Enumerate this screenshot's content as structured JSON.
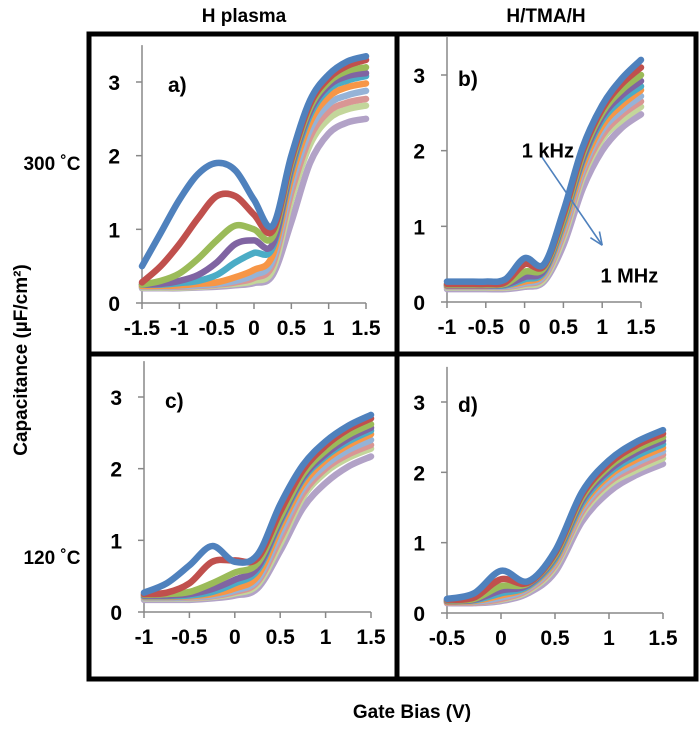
{
  "figure": {
    "column_titles": [
      "H plasma",
      "H/TMA/H"
    ],
    "row_titles": [
      "300 ˚C",
      "120 ˚C"
    ],
    "ylabel": "Capacitance (µF/cm²)",
    "xlabel": "Gate Bias (V)",
    "series_colors": [
      "#4F81BD",
      "#C0504D",
      "#9BBB59",
      "#8064A2",
      "#4BACC6",
      "#F79646",
      "#95B3D7",
      "#D99694",
      "#C3D69B",
      "#B2A2C7"
    ]
  },
  "chart_data": [
    {
      "type": "line",
      "panel_label": "a)",
      "xlim": [
        -1.5,
        1.5
      ],
      "ylim": [
        0,
        3.5
      ],
      "xticks": [
        "-1.5",
        "-1",
        "-0.5",
        "0",
        "0.5",
        "1",
        "1.5"
      ],
      "xtick_values": [
        -1.5,
        -1,
        -0.5,
        0,
        0.5,
        1,
        1.5
      ],
      "yticks": [
        "0",
        "1",
        "2",
        "3"
      ],
      "ytick_values": [
        0,
        1,
        2,
        3
      ],
      "grid": false,
      "x": [
        -1.5,
        -1.25,
        -1,
        -0.75,
        -0.5,
        -0.25,
        0,
        0.25,
        0.5,
        0.75,
        1,
        1.25,
        1.5
      ],
      "series": [
        {
          "values": [
            0.5,
            0.95,
            1.4,
            1.75,
            1.9,
            1.8,
            1.4,
            1.05,
            2.0,
            2.75,
            3.1,
            3.28,
            3.35
          ]
        },
        {
          "values": [
            0.28,
            0.5,
            0.8,
            1.15,
            1.45,
            1.45,
            1.2,
            0.98,
            1.95,
            2.7,
            3.05,
            3.22,
            3.3
          ]
        },
        {
          "values": [
            0.25,
            0.3,
            0.4,
            0.6,
            0.85,
            1.05,
            1.0,
            0.9,
            1.9,
            2.65,
            3.0,
            3.15,
            3.2
          ]
        },
        {
          "values": [
            0.25,
            0.26,
            0.3,
            0.38,
            0.55,
            0.8,
            0.85,
            0.8,
            1.85,
            2.6,
            2.95,
            3.08,
            3.12
          ]
        },
        {
          "values": [
            0.25,
            0.25,
            0.27,
            0.3,
            0.38,
            0.55,
            0.68,
            0.75,
            1.8,
            2.55,
            2.9,
            3.02,
            3.08
          ]
        },
        {
          "values": [
            0.23,
            0.23,
            0.24,
            0.26,
            0.28,
            0.35,
            0.45,
            0.65,
            1.7,
            2.45,
            2.8,
            2.93,
            2.98
          ]
        },
        {
          "values": [
            0.22,
            0.22,
            0.23,
            0.24,
            0.26,
            0.3,
            0.38,
            0.58,
            1.6,
            2.35,
            2.7,
            2.82,
            2.88
          ]
        },
        {
          "values": [
            0.22,
            0.22,
            0.22,
            0.23,
            0.25,
            0.28,
            0.34,
            0.52,
            1.5,
            2.25,
            2.6,
            2.72,
            2.77
          ]
        },
        {
          "values": [
            0.21,
            0.21,
            0.21,
            0.22,
            0.24,
            0.26,
            0.3,
            0.45,
            1.4,
            2.15,
            2.5,
            2.63,
            2.68
          ]
        },
        {
          "values": [
            0.2,
            0.2,
            0.2,
            0.21,
            0.22,
            0.24,
            0.27,
            0.38,
            1.1,
            1.9,
            2.3,
            2.45,
            2.5
          ]
        }
      ]
    },
    {
      "type": "line",
      "panel_label": "b)",
      "xlim": [
        -1,
        1.5
      ],
      "ylim": [
        0,
        3.5
      ],
      "xticks": [
        "-1",
        "-0.5",
        "0",
        "0.5",
        "1",
        "1.5"
      ],
      "xtick_values": [
        -1,
        -0.5,
        0,
        0.5,
        1,
        1.5
      ],
      "yticks": [
        "0",
        "1",
        "2",
        "3"
      ],
      "ytick_values": [
        0,
        1,
        2,
        3
      ],
      "grid": false,
      "x": [
        -1,
        -0.75,
        -0.5,
        -0.25,
        0,
        0.25,
        0.5,
        0.75,
        1,
        1.25,
        1.5
      ],
      "series": [
        {
          "values": [
            0.27,
            0.27,
            0.27,
            0.3,
            0.58,
            0.5,
            1.2,
            2.05,
            2.6,
            2.95,
            3.2
          ]
        },
        {
          "values": [
            0.24,
            0.24,
            0.24,
            0.26,
            0.5,
            0.48,
            1.15,
            2.0,
            2.55,
            2.88,
            3.1
          ]
        },
        {
          "values": [
            0.23,
            0.23,
            0.23,
            0.24,
            0.4,
            0.45,
            1.1,
            1.95,
            2.5,
            2.8,
            3.0
          ]
        },
        {
          "values": [
            0.22,
            0.22,
            0.22,
            0.23,
            0.33,
            0.42,
            1.08,
            1.9,
            2.45,
            2.73,
            2.92
          ]
        },
        {
          "values": [
            0.22,
            0.22,
            0.22,
            0.22,
            0.3,
            0.4,
            1.05,
            1.87,
            2.4,
            2.67,
            2.85
          ]
        },
        {
          "values": [
            0.21,
            0.21,
            0.21,
            0.22,
            0.27,
            0.38,
            1.0,
            1.8,
            2.33,
            2.6,
            2.8
          ]
        },
        {
          "values": [
            0.2,
            0.2,
            0.2,
            0.21,
            0.25,
            0.35,
            0.95,
            1.75,
            2.27,
            2.53,
            2.72
          ]
        },
        {
          "values": [
            0.2,
            0.2,
            0.2,
            0.2,
            0.24,
            0.33,
            0.9,
            1.7,
            2.2,
            2.47,
            2.65
          ]
        },
        {
          "values": [
            0.19,
            0.19,
            0.19,
            0.19,
            0.22,
            0.3,
            0.85,
            1.65,
            2.15,
            2.4,
            2.58
          ]
        },
        {
          "values": [
            0.17,
            0.17,
            0.17,
            0.17,
            0.2,
            0.27,
            0.75,
            1.5,
            2.0,
            2.3,
            2.48
          ]
        }
      ],
      "annotations": [
        {
          "text": "1 kHz",
          "x": 0.3,
          "y": 2.0
        },
        {
          "text": "1 MHz",
          "x": 1.35,
          "y": 0.35
        }
      ],
      "arrow": {
        "from": [
          0.2,
          1.95
        ],
        "to": [
          1.0,
          0.75
        ],
        "color": "#4F81BD"
      }
    },
    {
      "type": "line",
      "panel_label": "c)",
      "xlim": [
        -1,
        1.5
      ],
      "ylim": [
        0,
        3.5
      ],
      "xticks": [
        "-1",
        "-0.5",
        "0",
        "0.5",
        "1",
        "1.5"
      ],
      "xtick_values": [
        -1,
        -0.5,
        0,
        0.5,
        1,
        1.5
      ],
      "yticks": [
        "0",
        "1",
        "2",
        "3"
      ],
      "ytick_values": [
        0,
        1,
        2,
        3
      ],
      "grid": false,
      "x": [
        -1,
        -0.75,
        -0.5,
        -0.25,
        0,
        0.25,
        0.5,
        0.75,
        1,
        1.25,
        1.5
      ],
      "series": [
        {
          "values": [
            0.27,
            0.4,
            0.65,
            0.92,
            0.7,
            0.8,
            1.5,
            2.05,
            2.38,
            2.6,
            2.75
          ]
        },
        {
          "values": [
            0.25,
            0.27,
            0.4,
            0.7,
            0.72,
            0.75,
            1.4,
            1.98,
            2.32,
            2.55,
            2.7
          ]
        },
        {
          "values": [
            0.24,
            0.25,
            0.28,
            0.4,
            0.55,
            0.68,
            1.32,
            1.92,
            2.25,
            2.47,
            2.62
          ]
        },
        {
          "values": [
            0.23,
            0.23,
            0.25,
            0.32,
            0.45,
            0.62,
            1.28,
            1.88,
            2.2,
            2.42,
            2.57
          ]
        },
        {
          "values": [
            0.22,
            0.22,
            0.23,
            0.28,
            0.4,
            0.58,
            1.25,
            1.85,
            2.17,
            2.38,
            2.53
          ]
        },
        {
          "values": [
            0.21,
            0.21,
            0.22,
            0.25,
            0.33,
            0.5,
            1.18,
            1.78,
            2.12,
            2.33,
            2.48
          ]
        },
        {
          "values": [
            0.2,
            0.2,
            0.21,
            0.23,
            0.3,
            0.45,
            1.1,
            1.72,
            2.05,
            2.26,
            2.4
          ]
        },
        {
          "values": [
            0.2,
            0.2,
            0.2,
            0.22,
            0.28,
            0.42,
            1.02,
            1.65,
            2.0,
            2.2,
            2.33
          ]
        },
        {
          "values": [
            0.19,
            0.19,
            0.19,
            0.21,
            0.26,
            0.38,
            0.95,
            1.6,
            1.95,
            2.15,
            2.28
          ]
        },
        {
          "values": [
            0.17,
            0.17,
            0.17,
            0.19,
            0.23,
            0.33,
            0.85,
            1.45,
            1.8,
            2.03,
            2.17
          ]
        }
      ]
    },
    {
      "type": "line",
      "panel_label": "d)",
      "xlim": [
        -0.5,
        1.5
      ],
      "ylim": [
        0,
        3.5
      ],
      "xticks": [
        "-0.5",
        "0",
        "0.5",
        "1",
        "1.5"
      ],
      "xtick_values": [
        -0.5,
        0,
        0.5,
        1,
        1.5
      ],
      "yticks": [
        "0",
        "1",
        "2",
        "3"
      ],
      "ytick_values": [
        0,
        1,
        2,
        3
      ],
      "grid": false,
      "x": [
        -0.5,
        -0.25,
        0,
        0.25,
        0.5,
        0.75,
        1,
        1.25,
        1.5
      ],
      "series": [
        {
          "values": [
            0.2,
            0.28,
            0.6,
            0.45,
            0.88,
            1.72,
            2.17,
            2.43,
            2.6
          ]
        },
        {
          "values": [
            0.19,
            0.22,
            0.48,
            0.43,
            0.85,
            1.68,
            2.12,
            2.38,
            2.55
          ]
        },
        {
          "values": [
            0.18,
            0.2,
            0.38,
            0.42,
            0.82,
            1.64,
            2.08,
            2.33,
            2.5
          ]
        },
        {
          "values": [
            0.17,
            0.19,
            0.32,
            0.4,
            0.8,
            1.6,
            2.03,
            2.28,
            2.45
          ]
        },
        {
          "values": [
            0.17,
            0.18,
            0.28,
            0.38,
            0.77,
            1.56,
            1.99,
            2.23,
            2.4
          ]
        },
        {
          "values": [
            0.16,
            0.17,
            0.25,
            0.37,
            0.74,
            1.52,
            1.95,
            2.18,
            2.35
          ]
        },
        {
          "values": [
            0.16,
            0.16,
            0.22,
            0.35,
            0.71,
            1.48,
            1.9,
            2.13,
            2.3
          ]
        },
        {
          "values": [
            0.15,
            0.15,
            0.2,
            0.33,
            0.68,
            1.44,
            1.86,
            2.08,
            2.25
          ]
        },
        {
          "values": [
            0.15,
            0.15,
            0.19,
            0.31,
            0.65,
            1.4,
            1.82,
            2.03,
            2.2
          ]
        },
        {
          "values": [
            0.14,
            0.14,
            0.17,
            0.28,
            0.58,
            1.3,
            1.72,
            1.96,
            2.12
          ]
        }
      ]
    }
  ]
}
